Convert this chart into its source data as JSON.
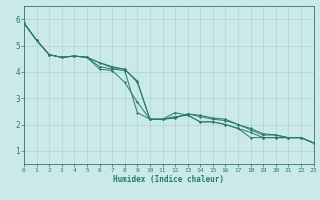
{
  "xlabel": "Humidex (Indice chaleur)",
  "xlim": [
    0,
    23
  ],
  "ylim": [
    0.5,
    6.5
  ],
  "xticks": [
    0,
    1,
    2,
    3,
    4,
    5,
    6,
    7,
    8,
    9,
    10,
    11,
    12,
    13,
    14,
    15,
    16,
    17,
    18,
    19,
    20,
    21,
    22,
    23
  ],
  "yticks": [
    1,
    2,
    3,
    4,
    5,
    6
  ],
  "bg_color": "#cce9ea",
  "grid_color": "#aad4d4",
  "line_color": "#2a7a6a",
  "series": [
    [
      5.85,
      5.2,
      4.65,
      4.55,
      4.6,
      4.55,
      4.2,
      4.1,
      4.05,
      2.45,
      2.2,
      2.2,
      2.45,
      2.35,
      2.1,
      2.1,
      2.0,
      1.85,
      1.5,
      1.5,
      1.5,
      1.5,
      1.5,
      1.3
    ],
    [
      5.85,
      5.2,
      4.65,
      4.55,
      4.6,
      4.55,
      4.1,
      4.05,
      3.6,
      2.85,
      2.2,
      2.2,
      2.3,
      2.35,
      2.1,
      2.1,
      2.0,
      1.85,
      1.7,
      1.5,
      1.5,
      1.5,
      1.5,
      1.3
    ],
    [
      5.85,
      5.2,
      4.65,
      4.55,
      4.6,
      4.55,
      4.35,
      4.15,
      4.1,
      3.6,
      2.2,
      2.2,
      2.25,
      2.4,
      2.3,
      2.2,
      2.15,
      2.0,
      1.8,
      1.6,
      1.6,
      1.5,
      1.5,
      1.3
    ],
    [
      5.85,
      5.2,
      4.65,
      4.55,
      4.6,
      4.55,
      4.35,
      4.2,
      4.1,
      3.65,
      2.2,
      2.2,
      2.25,
      2.4,
      2.35,
      2.25,
      2.2,
      2.0,
      1.85,
      1.65,
      1.6,
      1.5,
      1.5,
      1.3
    ]
  ]
}
